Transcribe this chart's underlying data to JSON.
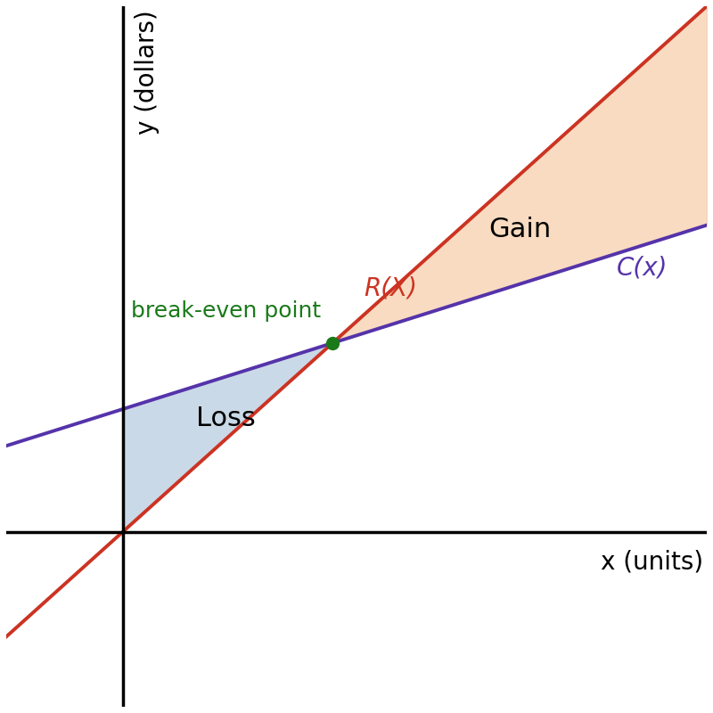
{
  "xlabel": "x (units)",
  "ylabel": "y (dollars)",
  "xlim": [
    -1.5,
    7.5
  ],
  "ylim": [
    -2.5,
    7.5
  ],
  "R_slope": 1.0,
  "R_intercept": 0.0,
  "C_slope": 0.35,
  "C_intercept": 1.75,
  "R_color": "#cc3322",
  "C_color": "#5533aa",
  "loss_fill_color": "#a8c0d8",
  "gain_fill_color": "#f5c9a0",
  "break_even_color": "#1a7a1a",
  "loss_label": "Loss",
  "gain_label": "Gain",
  "R_label": "R(X)",
  "C_label": "C(x)",
  "break_even_label": "break-even point",
  "loss_fill_alpha": 0.6,
  "gain_fill_alpha": 0.65,
  "label_fontsize": 20,
  "annotation_fontsize": 20,
  "line_label_fontsize": 20,
  "region_label_fontsize": 22,
  "break_even_fontsize": 18,
  "line_width": 2.8,
  "axis_linewidth": 2.5
}
